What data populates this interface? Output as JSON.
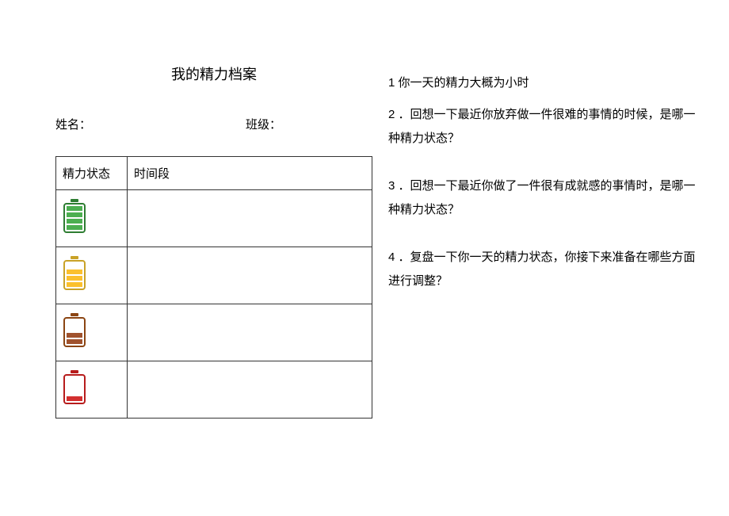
{
  "title": "我的精力档案",
  "labels": {
    "name": "姓名：",
    "class": "班级："
  },
  "table": {
    "columns": [
      "精力状态",
      "时间段"
    ],
    "rows": [
      {
        "level": 4,
        "color": "#4caf50",
        "stroke": "#2e7d32",
        "time": ""
      },
      {
        "level": 3,
        "color": "#fbc02d",
        "stroke": "#c9a227",
        "time": ""
      },
      {
        "level": 2,
        "color": "#a0522d",
        "stroke": "#8b4513",
        "time": ""
      },
      {
        "level": 1,
        "color": "#d32f2f",
        "stroke": "#b71c1c",
        "time": ""
      }
    ]
  },
  "questions": {
    "q1": "1 你一天的精力大概为小时",
    "q2": "2 ．回想一下最近你放弃做一件很难的事情的时候，是哪一种精力状态？",
    "q3": "3 ．回想一下最近你做了一件很有成就感的事情时，是哪一种精力状态？",
    "q4": "4 ．复盘一下你一天的精力状态，你接下来准备在哪些方面进行调整？"
  },
  "styling": {
    "background_color": "#ffffff",
    "border_color": "#333333",
    "font_family": "Microsoft YaHei",
    "title_fontsize": 18,
    "body_fontsize": 15,
    "line_height": 2,
    "battery": {
      "width": 30,
      "height": 44,
      "stroke_width": 2,
      "bar_count": 4
    }
  }
}
